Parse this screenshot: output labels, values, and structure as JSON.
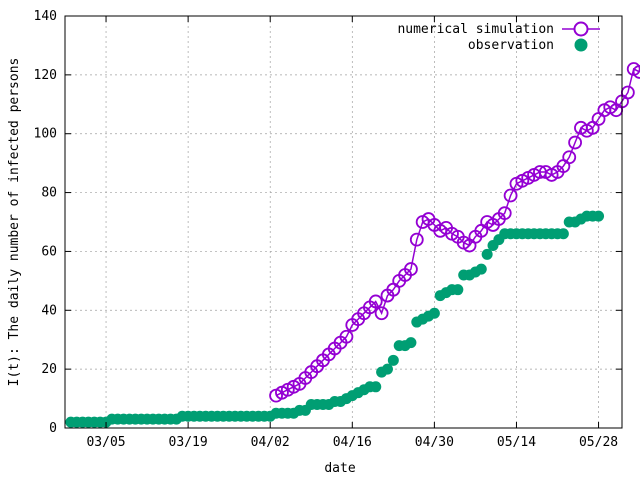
{
  "chart_data": {
    "type": "scatter",
    "xlabel": "date",
    "ylabel": "I(t): The daily number of infected persons",
    "ylim": [
      0,
      140
    ],
    "xlim": [
      "2020-02-27",
      "2020-06-01"
    ],
    "grid": true,
    "legend_position": "top-right",
    "x_ticks": [
      "03/05",
      "03/19",
      "04/02",
      "04/16",
      "04/30",
      "05/14",
      "05/28"
    ],
    "x_tick_dates": [
      "2020-03-05",
      "2020-03-19",
      "2020-04-02",
      "2020-04-16",
      "2020-04-30",
      "2020-05-14",
      "2020-05-28"
    ],
    "y_ticks": [
      0,
      20,
      40,
      60,
      80,
      100,
      120,
      140
    ],
    "colors": {
      "simulation": "#9400d3",
      "observation": "#009e73"
    },
    "series": [
      {
        "name": "numerical simulation",
        "style": "line-with-open-circles",
        "start_date": "2020-04-03",
        "values": [
          11,
          12,
          13,
          14,
          15,
          17,
          19,
          21,
          23,
          25,
          27,
          29,
          31,
          35,
          37,
          39,
          41,
          43,
          39,
          45,
          47,
          50,
          52,
          54,
          64,
          70,
          71,
          69,
          67,
          68,
          66,
          65,
          63,
          62,
          65,
          67,
          70,
          69,
          71,
          73,
          79,
          83,
          84,
          85,
          86,
          87,
          87,
          86,
          87,
          89,
          92,
          97,
          102,
          101,
          102,
          105,
          108,
          109,
          108,
          111,
          114,
          122,
          121
        ]
      },
      {
        "name": "observation",
        "style": "filled-circles",
        "start_date": "2020-02-28",
        "values": [
          2,
          2,
          2,
          2,
          2,
          2,
          2,
          3,
          3,
          3,
          3,
          3,
          3,
          3,
          3,
          3,
          3,
          3,
          3,
          4,
          4,
          4,
          4,
          4,
          4,
          4,
          4,
          4,
          4,
          4,
          4,
          4,
          4,
          4,
          4,
          5,
          5,
          5,
          5,
          6,
          6,
          8,
          8,
          8,
          8,
          9,
          9,
          10,
          11,
          12,
          13,
          14,
          14,
          19,
          20,
          23,
          28,
          28,
          29,
          36,
          37,
          38,
          39,
          45,
          46,
          47,
          47,
          52,
          52,
          53,
          54,
          59,
          62,
          64,
          66,
          66,
          66,
          66,
          66,
          66,
          66,
          66,
          66,
          66,
          66,
          70,
          70,
          71,
          72,
          72,
          72
        ]
      }
    ]
  }
}
